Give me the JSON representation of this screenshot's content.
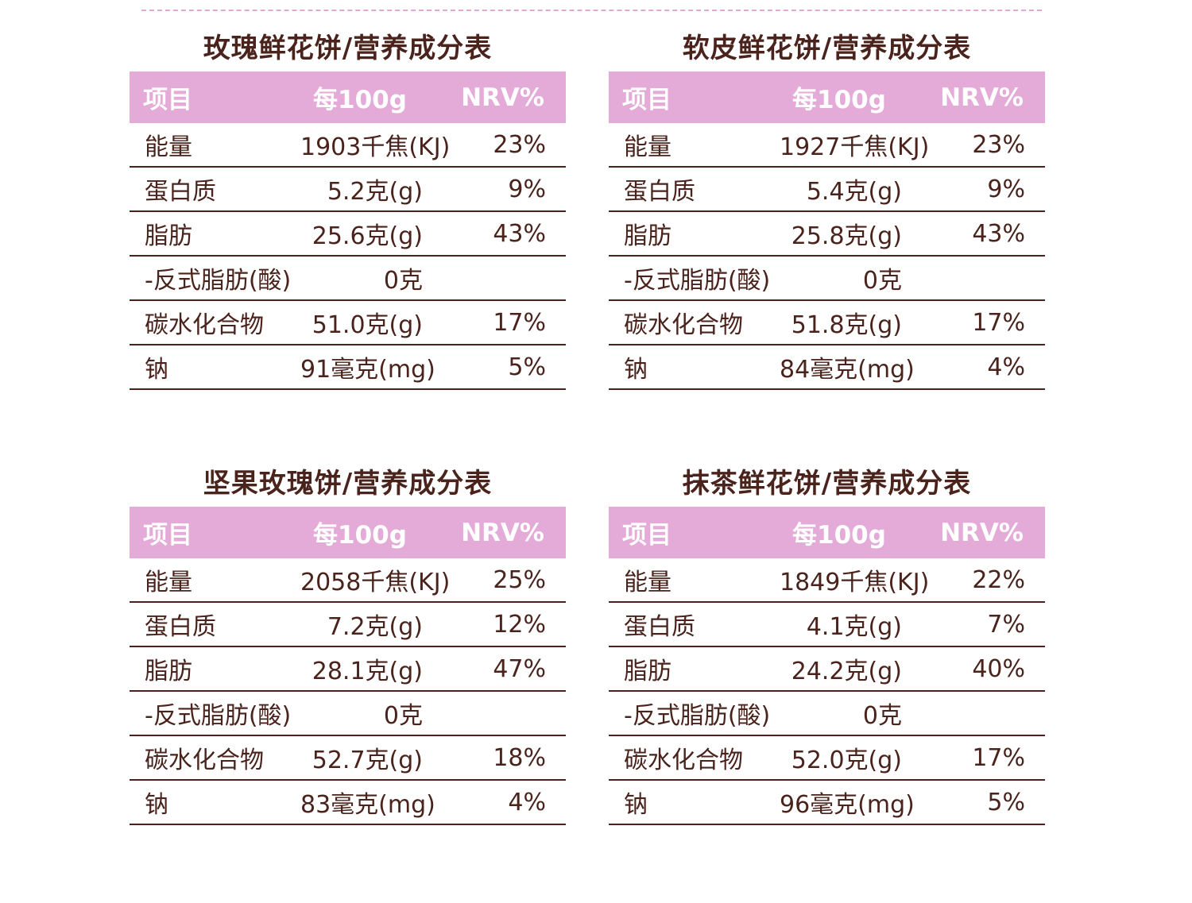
{
  "colors": {
    "header_bg": "#e4aad8",
    "text": "#4a231c",
    "divider": "#e0a9d4"
  },
  "columns": {
    "item": "项目",
    "per100g": "每100g",
    "nrv": "NRV%"
  },
  "tables": [
    {
      "title": "玫瑰鲜花饼/营养成分表",
      "rows": [
        {
          "item": "能量",
          "value": "1903千焦(KJ)",
          "nrv": "23%"
        },
        {
          "item": "蛋白质",
          "value": "5.2克(g)",
          "nrv": "9%"
        },
        {
          "item": "脂肪",
          "value": "25.6克(g)",
          "nrv": "43%"
        },
        {
          "item": "-反式脂肪(酸)",
          "value": "0克",
          "nrv": ""
        },
        {
          "item": "碳水化合物",
          "value": "51.0克(g)",
          "nrv": "17%"
        },
        {
          "item": "钠",
          "value": "91毫克(mg)",
          "nrv": "5%"
        }
      ]
    },
    {
      "title": "软皮鲜花饼/营养成分表",
      "rows": [
        {
          "item": "能量",
          "value": "1927千焦(KJ)",
          "nrv": "23%"
        },
        {
          "item": "蛋白质",
          "value": "5.4克(g)",
          "nrv": "9%"
        },
        {
          "item": "脂肪",
          "value": "25.8克(g)",
          "nrv": "43%"
        },
        {
          "item": "-反式脂肪(酸)",
          "value": "0克",
          "nrv": ""
        },
        {
          "item": "碳水化合物",
          "value": "51.8克(g)",
          "nrv": "17%"
        },
        {
          "item": "钠",
          "value": "84毫克(mg)",
          "nrv": "4%"
        }
      ]
    },
    {
      "title": "坚果玫瑰饼/营养成分表",
      "rows": [
        {
          "item": "能量",
          "value": "2058千焦(KJ)",
          "nrv": "25%"
        },
        {
          "item": "蛋白质",
          "value": "7.2克(g)",
          "nrv": "12%"
        },
        {
          "item": "脂肪",
          "value": "28.1克(g)",
          "nrv": "47%"
        },
        {
          "item": "-反式脂肪(酸)",
          "value": "0克",
          "nrv": ""
        },
        {
          "item": "碳水化合物",
          "value": "52.7克(g)",
          "nrv": "18%"
        },
        {
          "item": "钠",
          "value": "83毫克(mg)",
          "nrv": "4%"
        }
      ]
    },
    {
      "title": "抹茶鲜花饼/营养成分表",
      "rows": [
        {
          "item": "能量",
          "value": "1849千焦(KJ)",
          "nrv": "22%"
        },
        {
          "item": "蛋白质",
          "value": "4.1克(g)",
          "nrv": "7%"
        },
        {
          "item": "脂肪",
          "value": "24.2克(g)",
          "nrv": "40%"
        },
        {
          "item": "-反式脂肪(酸)",
          "value": "0克",
          "nrv": ""
        },
        {
          "item": "碳水化合物",
          "value": "52.0克(g)",
          "nrv": "17%"
        },
        {
          "item": "钠",
          "value": "96毫克(mg)",
          "nrv": "5%"
        }
      ]
    }
  ]
}
